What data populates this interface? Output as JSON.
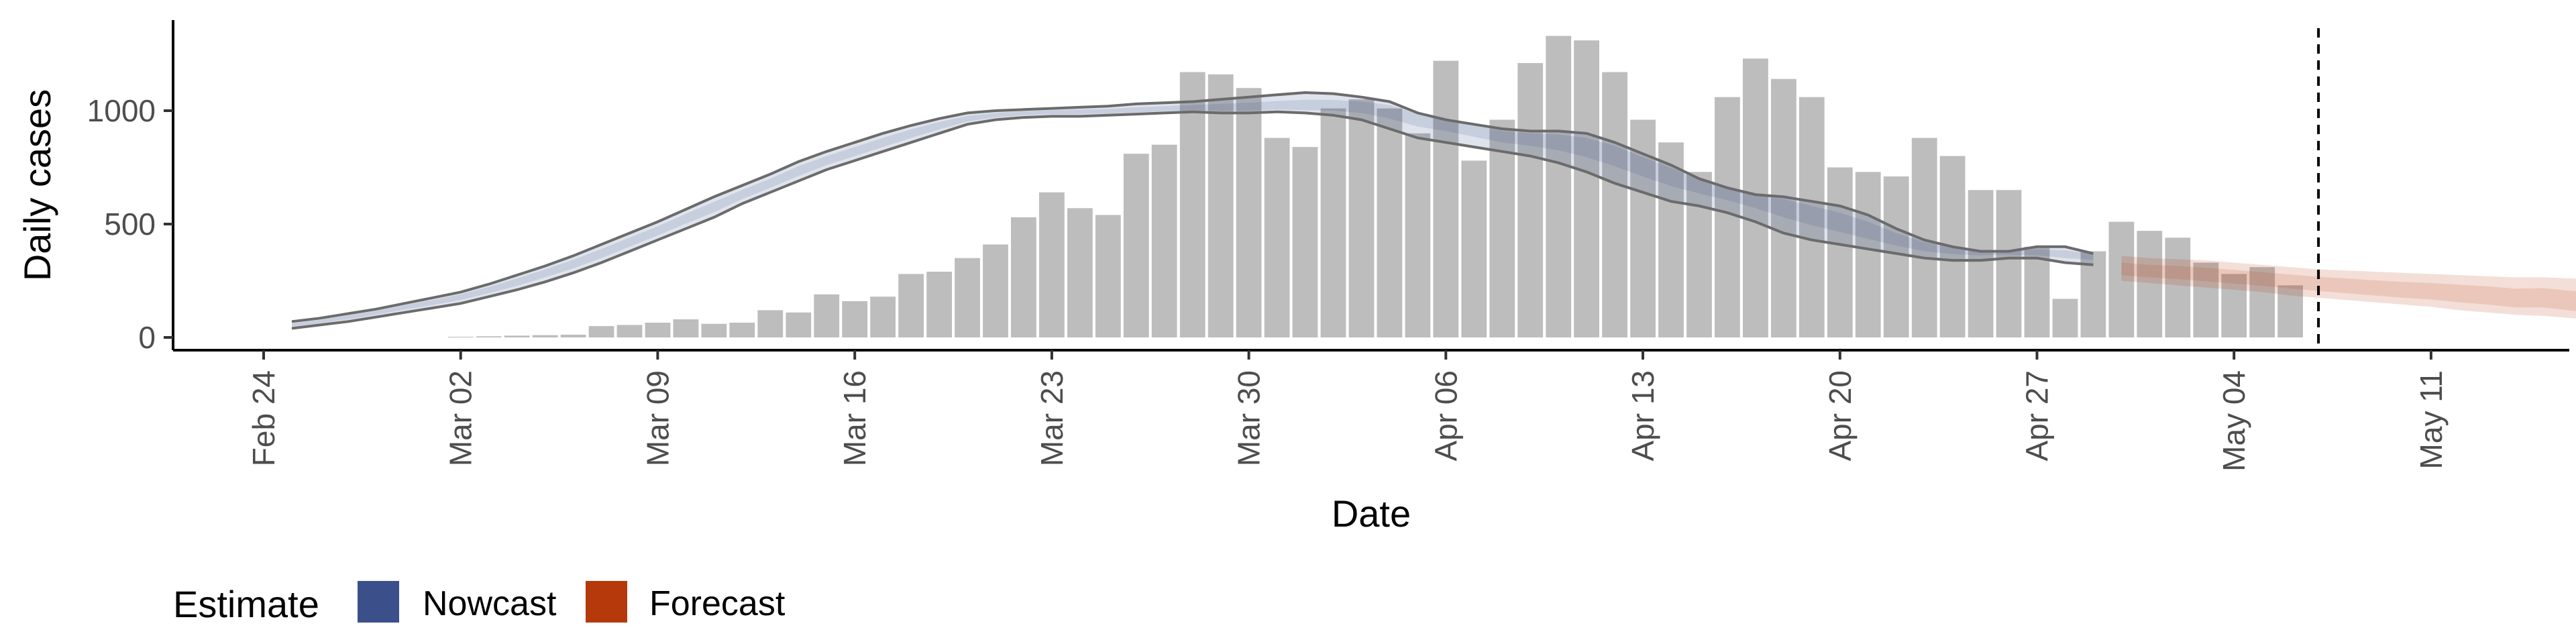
{
  "chart_data": {
    "type": "bar",
    "xlabel": "Date",
    "ylabel": "Daily cases",
    "x_ticks": [
      "Feb 24",
      "Mar 02",
      "Mar 09",
      "Mar 16",
      "Mar 23",
      "Mar 30",
      "Apr 06",
      "Apr 13",
      "Apr 20",
      "Apr 27",
      "May 04",
      "May 11"
    ],
    "y_ticks": [
      0,
      500,
      1000
    ],
    "xlim": [
      "2020-02-24",
      "2020-05-11"
    ],
    "ylim": [
      0,
      1400
    ],
    "grid": false,
    "vline_date": "2020-05-07",
    "bar_color": "#bdbdbd",
    "bars": {
      "start_date": "2020-03-02",
      "values": [
        3,
        5,
        8,
        10,
        12,
        50,
        55,
        65,
        80,
        60,
        65,
        120,
        110,
        190,
        160,
        180,
        280,
        290,
        350,
        410,
        530,
        640,
        570,
        540,
        810,
        850,
        1170,
        1160,
        1100,
        880,
        840,
        1010,
        1050,
        1010,
        900,
        1220,
        780,
        960,
        1210,
        1330,
        1310,
        1170,
        960,
        860,
        730,
        1060,
        1230,
        1140,
        1060,
        750,
        730,
        710,
        880,
        800,
        650,
        650,
        400,
        170,
        380,
        510,
        470,
        440,
        330,
        280,
        310,
        230
      ]
    },
    "series": [
      {
        "name": "Nowcast",
        "color": "#3b4f8a",
        "start_date": "2020-02-25",
        "median": [
          55,
          70,
          90,
          110,
          135,
          155,
          180,
          210,
          245,
          285,
          325,
          370,
          420,
          470,
          525,
          575,
          630,
          680,
          735,
          780,
          820,
          860,
          900,
          935,
          965,
          980,
          990,
          995,
          995,
          995,
          1000,
          1005,
          1010,
          1010,
          1010,
          1015,
          1015,
          1020,
          1020,
          1010,
          980,
          960,
          930,
          900,
          890,
          880,
          860,
          830,
          780,
          735,
          690,
          660,
          630,
          600,
          560,
          520,
          480,
          440,
          410,
          395,
          385,
          380,
          375,
          370,
          365
        ],
        "lower": [
          40,
          55,
          70,
          90,
          110,
          130,
          150,
          180,
          210,
          245,
          285,
          330,
          380,
          430,
          480,
          530,
          590,
          640,
          690,
          740,
          780,
          820,
          860,
          900,
          940,
          960,
          970,
          975,
          975,
          980,
          985,
          990,
          995,
          990,
          990,
          995,
          990,
          980,
          960,
          920,
          880,
          860,
          840,
          820,
          800,
          770,
          730,
          680,
          640,
          600,
          580,
          550,
          510,
          460,
          430,
          410,
          390,
          370,
          350,
          340,
          340,
          350,
          350,
          330,
          320
        ],
        "upper": [
          70,
          85,
          105,
          125,
          150,
          175,
          200,
          235,
          275,
          315,
          360,
          410,
          460,
          510,
          565,
          620,
          670,
          720,
          775,
          820,
          860,
          900,
          935,
          965,
          990,
          1000,
          1005,
          1010,
          1015,
          1020,
          1030,
          1035,
          1040,
          1050,
          1060,
          1070,
          1080,
          1075,
          1060,
          1040,
          990,
          960,
          940,
          920,
          910,
          910,
          900,
          860,
          810,
          760,
          700,
          660,
          630,
          620,
          600,
          580,
          540,
          480,
          430,
          400,
          380,
          380,
          400,
          400,
          370
        ]
      },
      {
        "name": "Forecast",
        "color": "#b5390a",
        "start_date": "2020-04-30",
        "median": [
          300,
          290,
          285,
          275,
          265,
          255,
          245,
          235,
          225,
          215,
          205,
          200,
          190,
          180,
          165,
          170,
          150,
          140,
          130
        ],
        "lower": [
          250,
          240,
          230,
          220,
          210,
          200,
          185,
          175,
          165,
          155,
          145,
          135,
          120,
          110,
          100,
          95,
          85,
          75,
          65
        ],
        "upper": [
          360,
          350,
          345,
          340,
          330,
          320,
          310,
          300,
          295,
          290,
          285,
          280,
          275,
          270,
          265,
          265,
          260,
          255,
          250
        ]
      }
    ],
    "legend": {
      "title": "Estimate",
      "position": "bottom-left",
      "items": [
        {
          "label": "Nowcast",
          "color": "#3b4f8a"
        },
        {
          "label": "Forecast",
          "color": "#b5390a"
        }
      ]
    }
  }
}
